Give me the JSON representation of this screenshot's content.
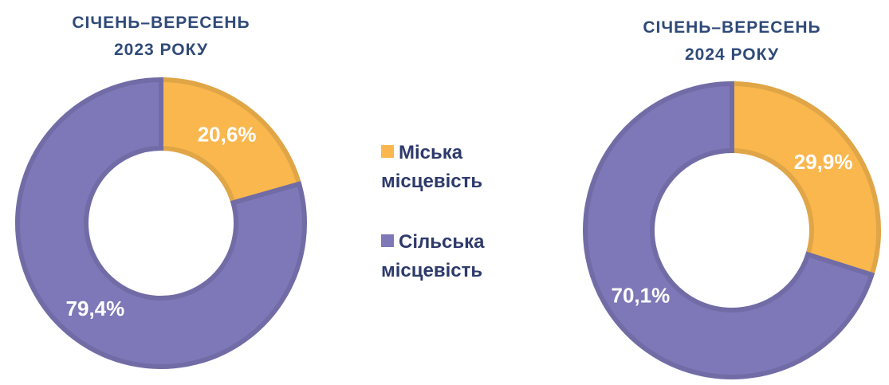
{
  "chart_data": [
    {
      "type": "donut",
      "title": "СІЧЕНЬ–ВЕРЕСЕНЬ 2023 РОКУ",
      "categories": [
        "Міська місцевість",
        "Сільська місцевість"
      ],
      "values": [
        20.6,
        79.4
      ],
      "value_labels": [
        "20,6%",
        "79,4%"
      ],
      "colors": [
        "#f9b74e",
        "#7e78b8"
      ]
    },
    {
      "type": "donut",
      "title": "СІЧЕНЬ–ВЕРЕСЕНЬ 2024 РОКУ",
      "categories": [
        "Міська місцевість",
        "Сільська місцевість"
      ],
      "values": [
        29.9,
        70.1
      ],
      "value_labels": [
        "29,9%",
        "70,1%"
      ],
      "colors": [
        "#f9b74e",
        "#7e78b8"
      ]
    }
  ]
}
